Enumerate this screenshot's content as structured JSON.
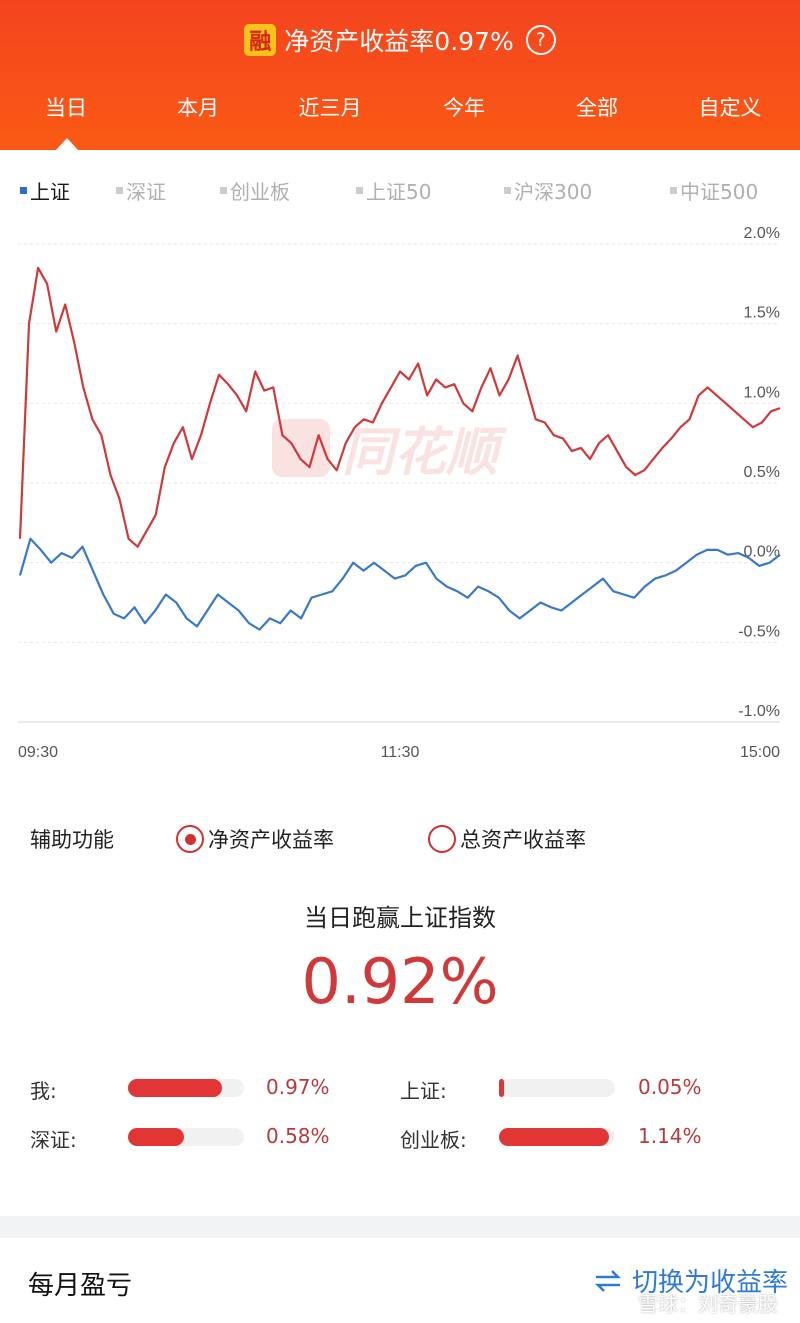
{
  "header": {
    "badge": "融",
    "title": "净资产收益率0.97%",
    "help_icon": "question-circle-icon",
    "help_glyph": "?",
    "tabs": [
      "当日",
      "本月",
      "近三月",
      "今年",
      "全部",
      "自定义"
    ],
    "active_tab": 0
  },
  "legend": {
    "items": [
      "上证",
      "深证",
      "创业板",
      "上证50",
      "沪深300",
      "中证500"
    ],
    "active": 0
  },
  "chart_data": {
    "type": "line",
    "x_labels": [
      "09:30",
      "11:30",
      "15:00"
    ],
    "y_ticks": [
      "2.0%",
      "1.5%",
      "1.0%",
      "0.5%",
      "0.0%",
      "-0.5%",
      "-1.0%"
    ],
    "ylim": [
      -1.0,
      2.0
    ],
    "grid": true,
    "watermark": "同花顺",
    "series": [
      {
        "name": "",
        "color": "#d0393a",
        "values": [
          0.15,
          1.5,
          1.85,
          1.75,
          1.45,
          1.62,
          1.38,
          1.1,
          0.9,
          0.8,
          0.55,
          0.4,
          0.15,
          0.1,
          0.2,
          0.3,
          0.6,
          0.75,
          0.85,
          0.65,
          0.8,
          1.0,
          1.18,
          1.12,
          1.05,
          0.95,
          1.2,
          1.08,
          1.1,
          0.8,
          0.75,
          0.65,
          0.6,
          0.8,
          0.65,
          0.58,
          0.75,
          0.85,
          0.9,
          0.88,
          1.0,
          1.1,
          1.2,
          1.15,
          1.25,
          1.05,
          1.15,
          1.1,
          1.12,
          1.0,
          0.95,
          1.1,
          1.22,
          1.05,
          1.15,
          1.3,
          1.1,
          0.9,
          0.88,
          0.8,
          0.78,
          0.7,
          0.72,
          0.65,
          0.75,
          0.8,
          0.7,
          0.6,
          0.55,
          0.58,
          0.65,
          0.72,
          0.78,
          0.85,
          0.9,
          1.05,
          1.1,
          1.05,
          1.0,
          0.95,
          0.9,
          0.85,
          0.88,
          0.95,
          0.97
        ]
      },
      {
        "name": "",
        "color": "#3a78c9",
        "values": [
          -0.08,
          0.15,
          0.08,
          0.0,
          0.06,
          0.03,
          0.1,
          -0.05,
          -0.2,
          -0.32,
          -0.35,
          -0.28,
          -0.38,
          -0.3,
          -0.2,
          -0.25,
          -0.35,
          -0.4,
          -0.3,
          -0.2,
          -0.25,
          -0.3,
          -0.38,
          -0.42,
          -0.35,
          -0.38,
          -0.3,
          -0.35,
          -0.22,
          -0.2,
          -0.18,
          -0.1,
          0.0,
          -0.05,
          0.0,
          -0.05,
          -0.1,
          -0.08,
          -0.02,
          0.0,
          -0.1,
          -0.15,
          -0.18,
          -0.22,
          -0.15,
          -0.18,
          -0.22,
          -0.3,
          -0.35,
          -0.3,
          -0.25,
          -0.28,
          -0.3,
          -0.25,
          -0.2,
          -0.15,
          -0.1,
          -0.18,
          -0.2,
          -0.22,
          -0.15,
          -0.1,
          -0.08,
          -0.05,
          0.0,
          0.05,
          0.08,
          0.08,
          0.05,
          0.06,
          0.03,
          -0.02,
          0.0,
          0.05
        ]
      }
    ]
  },
  "aux": {
    "label": "辅助功能",
    "options": [
      "净资产收益率",
      "总资产收益率"
    ],
    "selected": 0
  },
  "beat": {
    "title": "当日跑赢上证指数",
    "value": "0.92%"
  },
  "comparison": [
    {
      "label": "我:",
      "value": "0.97%",
      "pct": 0.97
    },
    {
      "label": "上证:",
      "value": "0.05%",
      "pct": 0.05
    },
    {
      "label": "深证:",
      "value": "0.58%",
      "pct": 0.58
    },
    {
      "label": "创业板:",
      "value": "1.14%",
      "pct": 1.14
    }
  ],
  "monthly": {
    "title": "每月盈亏",
    "switch_label": "切换为收益率",
    "switch_icon": "swap-icon"
  },
  "watermark": "雪球：刘奇豪股"
}
